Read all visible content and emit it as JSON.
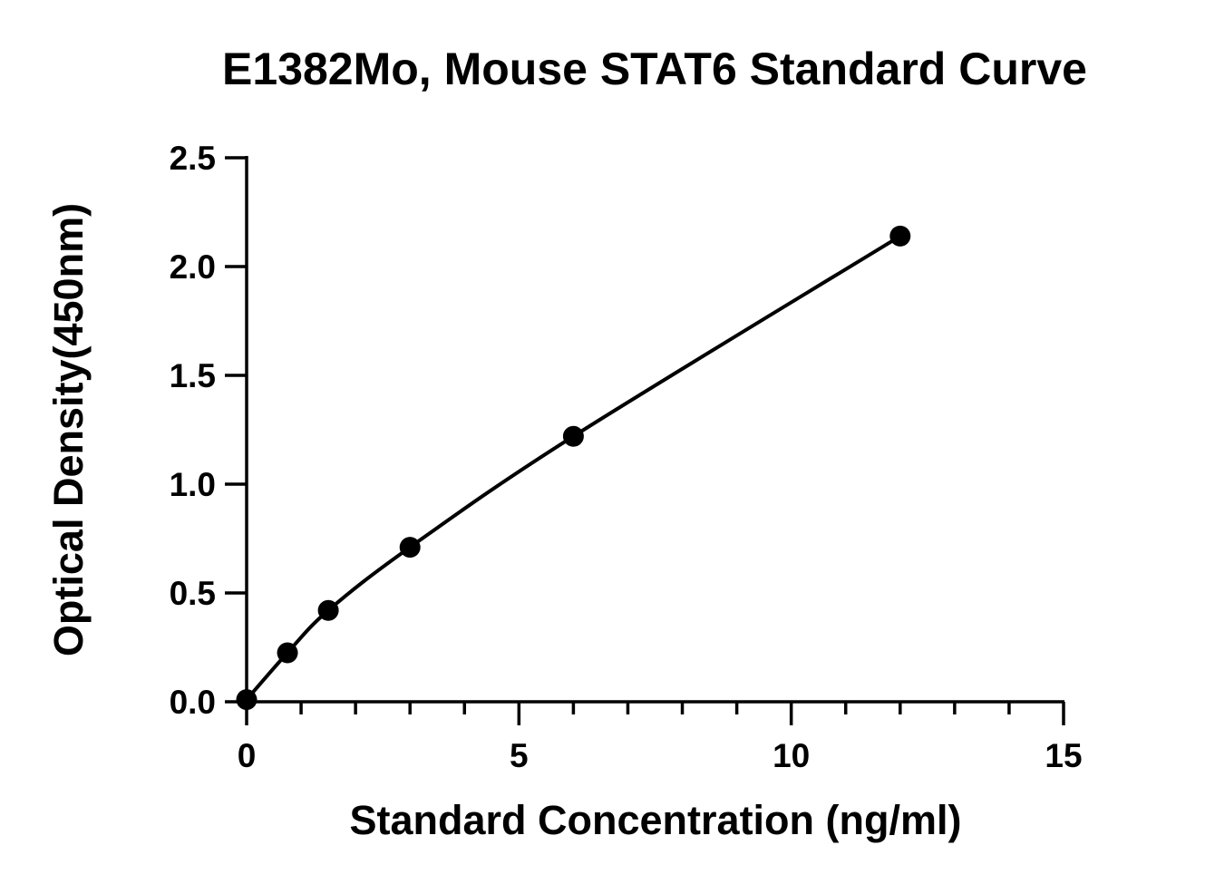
{
  "chart_data": {
    "type": "scatter",
    "title": "E1382Mo, Mouse STAT6 Standard Curve",
    "xlabel": "Standard Concentration (ng/ml)",
    "ylabel": "Optical Density(450nm)",
    "xlim": [
      0,
      15
    ],
    "ylim": [
      0,
      2.5
    ],
    "x_ticks": [
      "0",
      "5",
      "10",
      "15"
    ],
    "y_ticks": [
      "0.0",
      "0.5",
      "1.0",
      "1.5",
      "2.0",
      "2.5"
    ],
    "x_minor_step": 1,
    "grid": false,
    "legend": "none",
    "series": [
      {
        "points": [
          {
            "x": 0,
            "y": 0.01
          },
          {
            "x": 0.75,
            "y": 0.225
          },
          {
            "x": 1.5,
            "y": 0.42
          },
          {
            "x": 3,
            "y": 0.71
          },
          {
            "x": 6,
            "y": 1.22
          },
          {
            "x": 12,
            "y": 2.14
          }
        ],
        "fit_curve": "smooth",
        "color": "#000000"
      }
    ]
  }
}
